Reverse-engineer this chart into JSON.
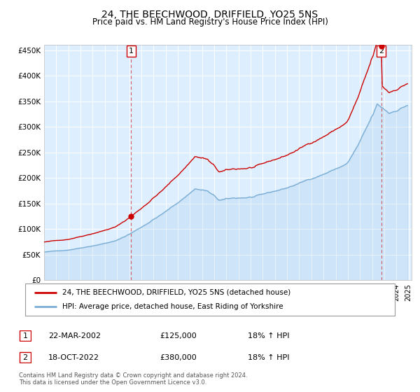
{
  "title": "24, THE BEECHWOOD, DRIFFIELD, YO25 5NS",
  "subtitle": "Price paid vs. HM Land Registry's House Price Index (HPI)",
  "sale1_date": "22-MAR-2002",
  "sale1_price": 125000,
  "sale1_label": "1",
  "sale2_date": "18-OCT-2022",
  "sale2_price": 380000,
  "sale2_label": "2",
  "legend_line1": "24, THE BEECHWOOD, DRIFFIELD, YO25 5NS (detached house)",
  "legend_line2": "HPI: Average price, detached house, East Riding of Yorkshire",
  "table_row1": [
    "1",
    "22-MAR-2002",
    "£125,000",
    "18% ↑ HPI"
  ],
  "table_row2": [
    "2",
    "18-OCT-2022",
    "£380,000",
    "18% ↑ HPI"
  ],
  "footnote1": "Contains HM Land Registry data © Crown copyright and database right 2024.",
  "footnote2": "This data is licensed under the Open Government Licence v3.0.",
  "red_color": "#cc0000",
  "blue_color": "#7aadd4",
  "bg_color": "#ddeeff",
  "grid_color": "#ffffff",
  "ylim": [
    0,
    460000
  ],
  "yticks": [
    0,
    50000,
    100000,
    150000,
    200000,
    250000,
    300000,
    350000,
    400000,
    450000
  ],
  "ytick_labels": [
    "£0",
    "£50K",
    "£100K",
    "£150K",
    "£200K",
    "£250K",
    "£300K",
    "£350K",
    "£400K",
    "£450K"
  ]
}
